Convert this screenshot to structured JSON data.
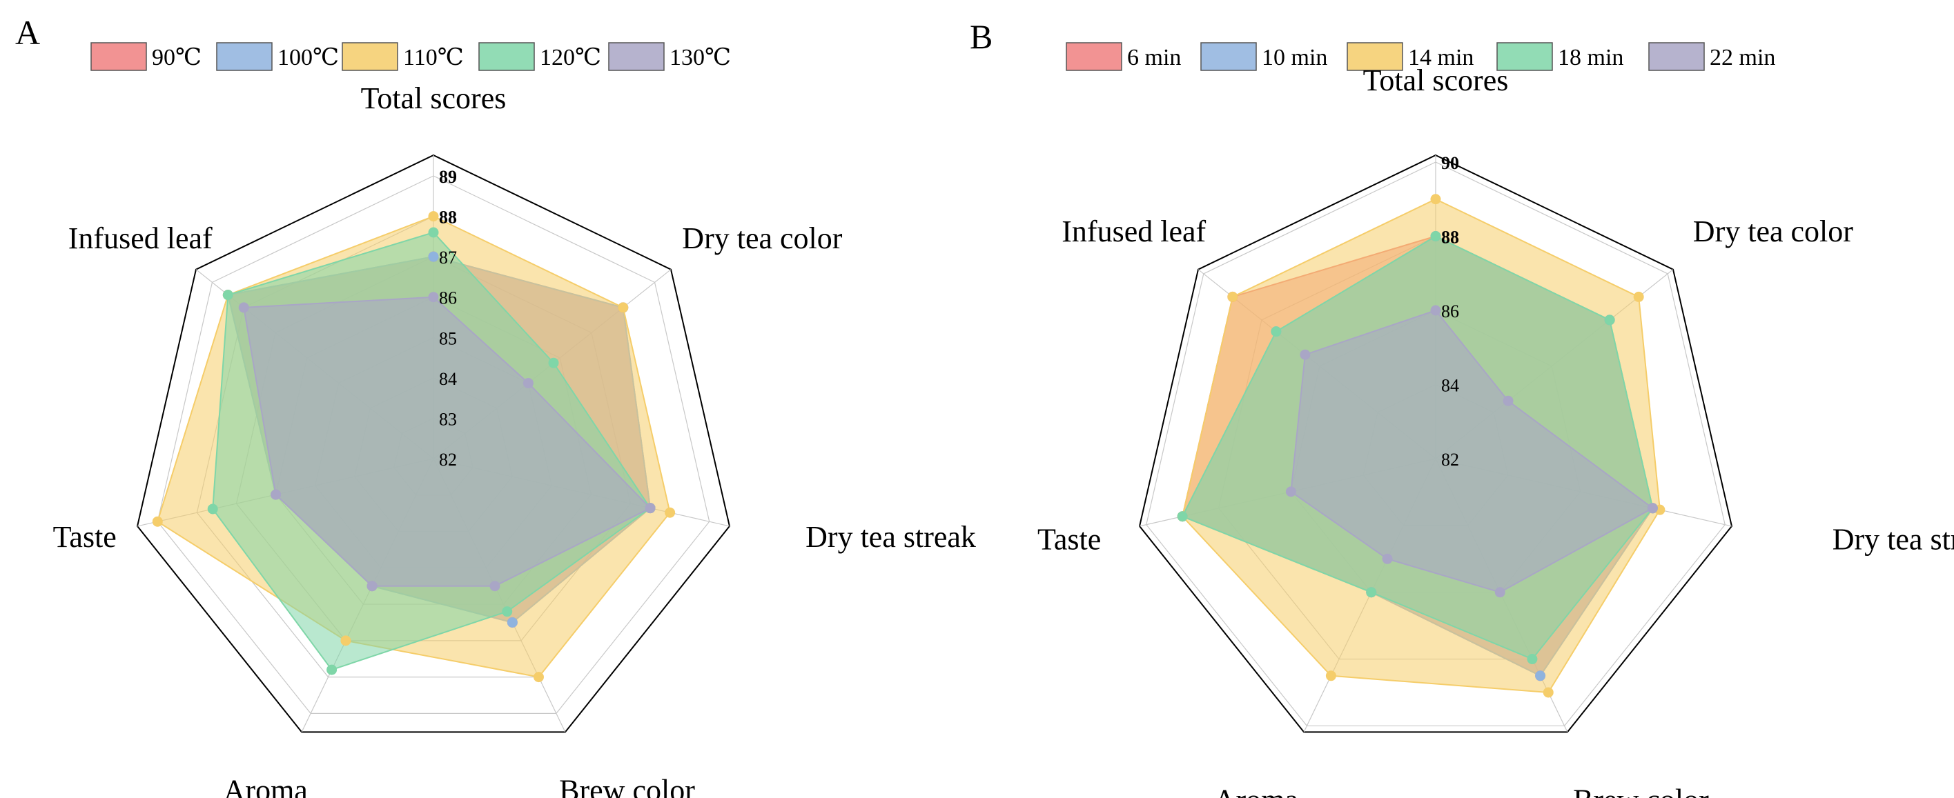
{
  "chart_data": [
    {
      "panel": "A",
      "type": "radar",
      "axes": [
        "Total scores",
        "Dry tea color",
        "Dry tea streak",
        "Brew color",
        "Aroma",
        "Taste",
        "Infused leaf"
      ],
      "rlim": [
        82,
        89
      ],
      "ticks": [
        "82",
        "83",
        "84",
        "85",
        "86",
        "87",
        "88",
        "89"
      ],
      "legend_position": "top",
      "series": [
        {
          "name": "90℃",
          "color": "#f08080",
          "values": [
            87.0,
            88.0,
            87.5,
            86.5,
            85.5,
            86.0,
            88.5
          ]
        },
        {
          "name": "100℃",
          "color": "#8fb3de",
          "values": [
            87.0,
            88.0,
            87.5,
            86.5,
            85.5,
            86.0,
            88.5
          ]
        },
        {
          "name": "110℃",
          "color": "#f5cd6a",
          "values": [
            88.0,
            88.0,
            88.0,
            88.0,
            87.0,
            89.0,
            88.5
          ]
        },
        {
          "name": "120℃",
          "color": "#7fd6a8",
          "values": [
            87.6,
            85.8,
            87.5,
            86.2,
            87.8,
            87.6,
            88.5
          ]
        },
        {
          "name": "130℃",
          "color": "#a9a6c6",
          "values": [
            86.0,
            85.0,
            87.5,
            85.5,
            85.5,
            86.0,
            88.0
          ]
        }
      ]
    },
    {
      "panel": "B",
      "type": "radar",
      "axes": [
        "Total scores",
        "Dry tea color",
        "Dry tea streak",
        "Brew color",
        "Aroma",
        "Taste",
        "Infused leaf"
      ],
      "rlim": [
        82,
        90
      ],
      "ticks": [
        "82",
        "84",
        "86",
        "88",
        "90"
      ],
      "legend_position": "top",
      "series": [
        {
          "name": "6 min",
          "color": "#f08080",
          "values": [
            88.0,
            88.0,
            88.0,
            88.5,
            86.0,
            89.0,
            89.0
          ]
        },
        {
          "name": "10 min",
          "color": "#8fb3de",
          "values": [
            88.0,
            88.0,
            88.0,
            88.5,
            86.0,
            89.0,
            87.5
          ]
        },
        {
          "name": "14 min",
          "color": "#f5cd6a",
          "values": [
            89.0,
            89.0,
            88.2,
            89.0,
            88.5,
            89.0,
            89.0
          ]
        },
        {
          "name": "18 min",
          "color": "#7fd6a8",
          "values": [
            88.0,
            88.0,
            88.0,
            88.0,
            86.0,
            89.0,
            87.5
          ]
        },
        {
          "name": "22 min",
          "color": "#a9a6c6",
          "values": [
            86.0,
            84.5,
            88.0,
            86.0,
            85.0,
            86.0,
            86.5
          ]
        }
      ]
    }
  ]
}
